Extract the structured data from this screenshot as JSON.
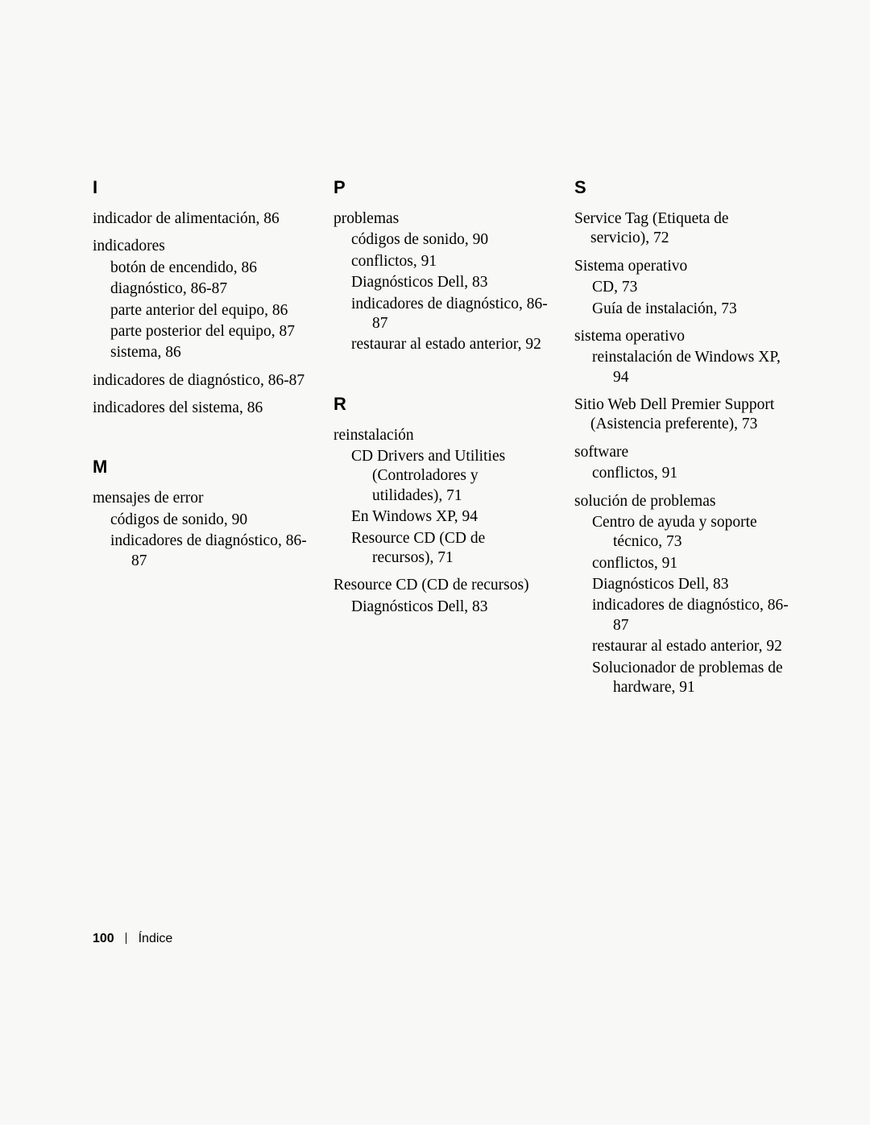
{
  "footer": {
    "page_number": "100",
    "section_label": "Índice"
  },
  "columns": [
    {
      "sections": [
        {
          "letter": "I",
          "groups": [
            {
              "lines": [
                {
                  "level": 0,
                  "text": "indicador de alimentación, 86"
                }
              ]
            },
            {
              "lines": [
                {
                  "level": 0,
                  "text": "indicadores"
                },
                {
                  "level": 1,
                  "text": "botón de encendido, 86"
                },
                {
                  "level": 1,
                  "text": "diagnóstico, 86-87"
                },
                {
                  "level": 1,
                  "text": "parte anterior del equipo, 86"
                },
                {
                  "level": 1,
                  "text": "parte posterior del equipo, 87"
                },
                {
                  "level": 1,
                  "text": "sistema, 86"
                }
              ]
            },
            {
              "lines": [
                {
                  "level": 0,
                  "text": "indicadores de diagnóstico, 86-87"
                }
              ]
            },
            {
              "lines": [
                {
                  "level": 0,
                  "text": "indicadores del sistema, 86"
                }
              ]
            }
          ]
        },
        {
          "letter": "M",
          "groups": [
            {
              "lines": [
                {
                  "level": 0,
                  "text": "mensajes de error"
                },
                {
                  "level": 1,
                  "text": "códigos de sonido, 90"
                },
                {
                  "level": 1,
                  "text": "indicadores de diagnóstico, 86-87"
                }
              ]
            }
          ]
        }
      ]
    },
    {
      "sections": [
        {
          "letter": "P",
          "groups": [
            {
              "lines": [
                {
                  "level": 0,
                  "text": "problemas"
                },
                {
                  "level": 1,
                  "text": "códigos de sonido, 90"
                },
                {
                  "level": 1,
                  "text": "conflictos, 91"
                },
                {
                  "level": 1,
                  "text": "Diagnósticos Dell, 83"
                },
                {
                  "level": 1,
                  "text": "indicadores de diagnóstico, 86-87"
                },
                {
                  "level": 1,
                  "text": "restaurar al estado anterior, 92"
                }
              ]
            }
          ]
        },
        {
          "letter": "R",
          "groups": [
            {
              "lines": [
                {
                  "level": 0,
                  "text": "reinstalación"
                },
                {
                  "level": 1,
                  "text": "CD Drivers and Utilities (Controladores y utilidades), 71"
                },
                {
                  "level": 1,
                  "text": "En Windows XP, 94"
                },
                {
                  "level": 1,
                  "text": "Resource CD (CD de recursos), 71"
                }
              ]
            },
            {
              "lines": [
                {
                  "level": 0,
                  "text": "Resource CD (CD de recursos)"
                },
                {
                  "level": 1,
                  "text": "Diagnósticos Dell, 83"
                }
              ]
            }
          ]
        }
      ]
    },
    {
      "sections": [
        {
          "letter": "S",
          "groups": [
            {
              "lines": [
                {
                  "level": 0,
                  "text": "Service Tag (Etiqueta de servicio), 72"
                }
              ]
            },
            {
              "lines": [
                {
                  "level": 0,
                  "text": "Sistema operativo"
                },
                {
                  "level": 1,
                  "text": "CD, 73"
                },
                {
                  "level": 1,
                  "text": "Guía de instalación, 73"
                }
              ]
            },
            {
              "lines": [
                {
                  "level": 0,
                  "text": "sistema operativo"
                },
                {
                  "level": 1,
                  "text": "reinstalación de Windows XP, 94"
                }
              ]
            },
            {
              "lines": [
                {
                  "level": 0,
                  "text": "Sitio Web Dell Premier Support (Asistencia preferente), 73"
                }
              ]
            },
            {
              "lines": [
                {
                  "level": 0,
                  "text": "software"
                },
                {
                  "level": 1,
                  "text": "conflictos, 91"
                }
              ]
            },
            {
              "lines": [
                {
                  "level": 0,
                  "text": "solución de problemas"
                },
                {
                  "level": 1,
                  "text": "Centro de ayuda y soporte técnico, 73"
                },
                {
                  "level": 1,
                  "text": "conflictos, 91"
                },
                {
                  "level": 1,
                  "text": "Diagnósticos Dell, 83"
                },
                {
                  "level": 1,
                  "text": "indicadores de diagnóstico, 86-87"
                },
                {
                  "level": 1,
                  "text": "restaurar al estado anterior, 92"
                },
                {
                  "level": 1,
                  "text": "Solucionador de problemas de hardware, 91"
                }
              ]
            }
          ]
        }
      ]
    }
  ]
}
